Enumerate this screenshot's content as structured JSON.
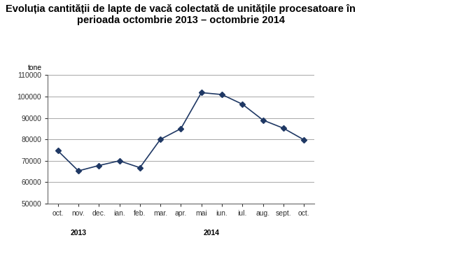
{
  "chart_data": {
    "type": "line",
    "title": "Evoluția cantității de lapte de vacă colectată de unitățile procesatoare în perioada octombrie 2013 – octombrie 2014",
    "y_label": "tone",
    "categories": [
      "oct.",
      "nov.",
      "dec.",
      "ian.",
      "feb.",
      "mar.",
      "apr.",
      "mai",
      "iun.",
      "iul.",
      "aug.",
      "sept.",
      "oct."
    ],
    "values": [
      74700,
      65300,
      67800,
      70000,
      66800,
      80000,
      85000,
      101800,
      100900,
      96400,
      89000,
      85200,
      79800
    ],
    "x_groups": [
      {
        "label": "2013",
        "count": 3
      },
      {
        "label": "2014",
        "count": 10
      }
    ],
    "color": "#1f3864",
    "marker": "D",
    "line_style": "solid",
    "ylim": [
      50000,
      110000
    ],
    "yticks": [
      50000,
      60000,
      70000,
      80000,
      90000,
      100000,
      110000
    ],
    "grid": true
  }
}
